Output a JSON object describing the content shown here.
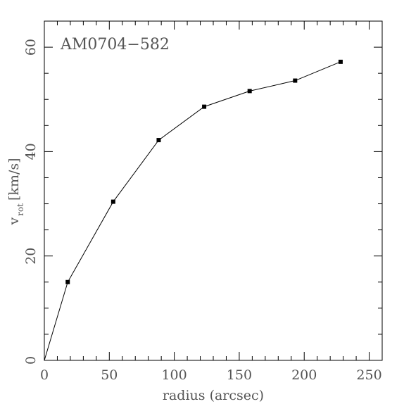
{
  "chart_data": {
    "type": "line",
    "title": "AM0704−582",
    "xlabel": "radius (arcsec)",
    "ylabel_main": "v",
    "ylabel_sub": "rot",
    "ylabel_unit": "[km/s]",
    "xlim": [
      0,
      260
    ],
    "ylim": [
      0,
      65
    ],
    "x_ticks": [
      0,
      50,
      100,
      150,
      200,
      250
    ],
    "y_ticks": [
      0,
      20,
      40,
      60
    ],
    "x_minor_step": 10,
    "y_minor_step": 5,
    "grid": false,
    "line_start": [
      0,
      0
    ],
    "series": [
      {
        "x": [
          18,
          53,
          88,
          123,
          158,
          193,
          228
        ],
        "y": [
          15.0,
          30.4,
          42.2,
          48.6,
          51.6,
          53.6,
          57.2
        ]
      }
    ]
  }
}
